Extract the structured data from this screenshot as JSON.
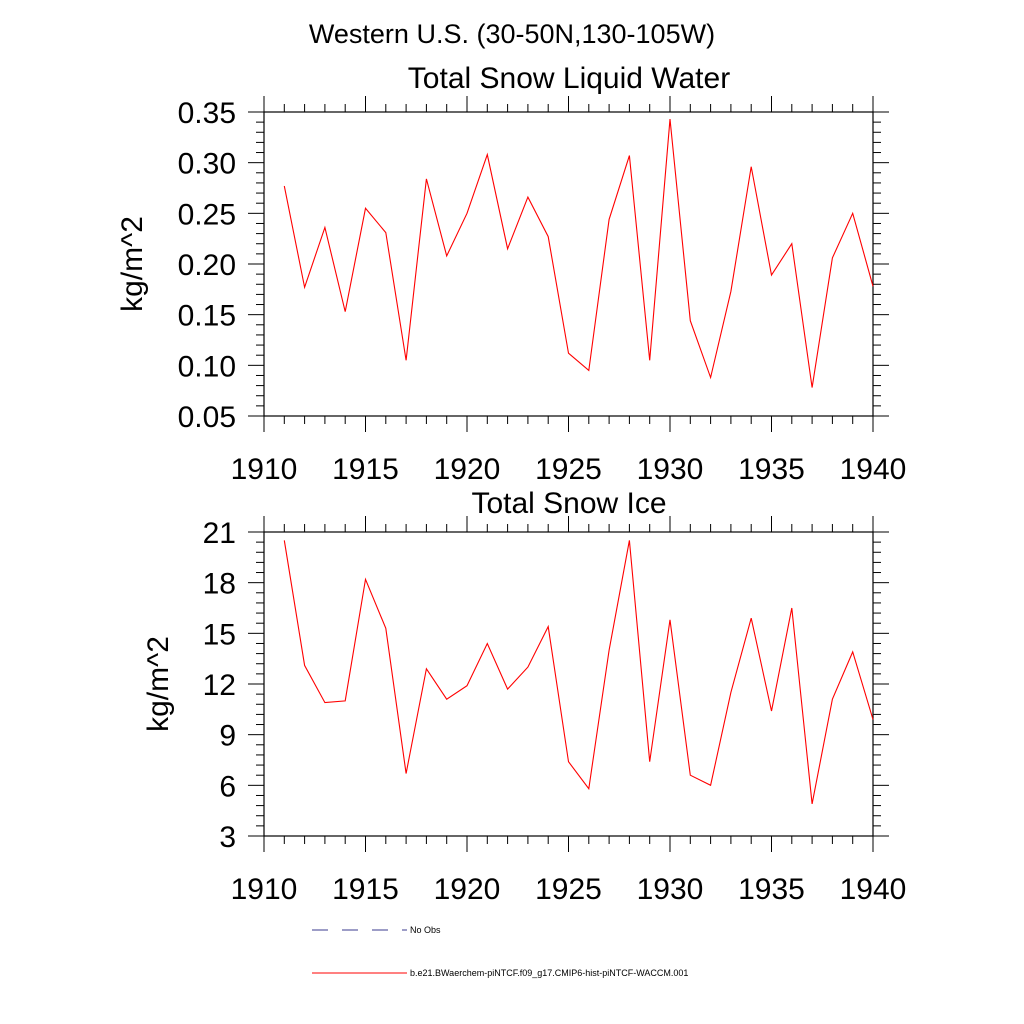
{
  "figure": {
    "title": "Western U.S. (30-50N,130-105W)"
  },
  "chart_data": [
    {
      "type": "line",
      "title": "Total Snow Liquid Water",
      "xlabel": "",
      "ylabel": "kg/m^2",
      "xlim": [
        1910,
        1940
      ],
      "ylim": [
        0.05,
        0.35
      ],
      "x_ticks": [
        "1910",
        "1915",
        "1920",
        "1925",
        "1930",
        "1935",
        "1940"
      ],
      "y_ticks": [
        "0.05",
        "0.10",
        "0.15",
        "0.20",
        "0.25",
        "0.30",
        "0.35"
      ],
      "x": [
        1911,
        1912,
        1913,
        1914,
        1915,
        1916,
        1917,
        1918,
        1919,
        1920,
        1921,
        1922,
        1923,
        1924,
        1925,
        1926,
        1927,
        1928,
        1929,
        1930,
        1931,
        1932,
        1933,
        1934,
        1935,
        1936,
        1937,
        1938,
        1939,
        1940
      ],
      "series": [
        {
          "name": "b.e21.BWaerchem-piNTCF.f09_g17.CMIP6-hist-piNTCF-WACCM.001",
          "color": "#ff0000",
          "values": [
            0.277,
            0.177,
            0.236,
            0.153,
            0.255,
            0.231,
            0.105,
            0.284,
            0.208,
            0.25,
            0.308,
            0.215,
            0.266,
            0.227,
            0.112,
            0.095,
            0.244,
            0.307,
            0.105,
            0.343,
            0.144,
            0.088,
            0.173,
            0.296,
            0.189,
            0.22,
            0.078,
            0.206,
            0.25,
            0.178
          ]
        }
      ],
      "grid": false
    },
    {
      "type": "line",
      "title": "Total Snow Ice",
      "xlabel": "",
      "ylabel": "kg/m^2",
      "xlim": [
        1910,
        1940
      ],
      "ylim": [
        3,
        21
      ],
      "x_ticks": [
        "1910",
        "1915",
        "1920",
        "1925",
        "1930",
        "1935",
        "1940"
      ],
      "y_ticks": [
        "3",
        "6",
        "9",
        "12",
        "15",
        "18",
        "21"
      ],
      "x": [
        1911,
        1912,
        1913,
        1914,
        1915,
        1916,
        1917,
        1918,
        1919,
        1920,
        1921,
        1922,
        1923,
        1924,
        1925,
        1926,
        1927,
        1928,
        1929,
        1930,
        1931,
        1932,
        1933,
        1934,
        1935,
        1936,
        1937,
        1938,
        1939,
        1940
      ],
      "series": [
        {
          "name": "b.e21.BWaerchem-piNTCF.f09_g17.CMIP6-hist-piNTCF-WACCM.001",
          "color": "#ff0000",
          "values": [
            20.5,
            13.1,
            10.9,
            11.0,
            18.2,
            15.3,
            6.7,
            12.9,
            11.1,
            11.9,
            14.4,
            11.7,
            13.0,
            15.4,
            7.4,
            5.8,
            14.0,
            20.5,
            7.4,
            15.8,
            6.6,
            6.0,
            11.5,
            15.9,
            10.4,
            16.5,
            4.9,
            11.1,
            13.9,
            9.9
          ]
        }
      ],
      "grid": false
    }
  ],
  "legend": {
    "placement": "bottom",
    "items": [
      {
        "label": "No Obs",
        "color": "#3b3b8f",
        "style": "dashed"
      },
      {
        "label": "b.e21.BWaerchem-piNTCF.f09_g17.CMIP6-hist-piNTCF-WACCM.001",
        "color": "#ff0000",
        "style": "solid"
      }
    ]
  }
}
